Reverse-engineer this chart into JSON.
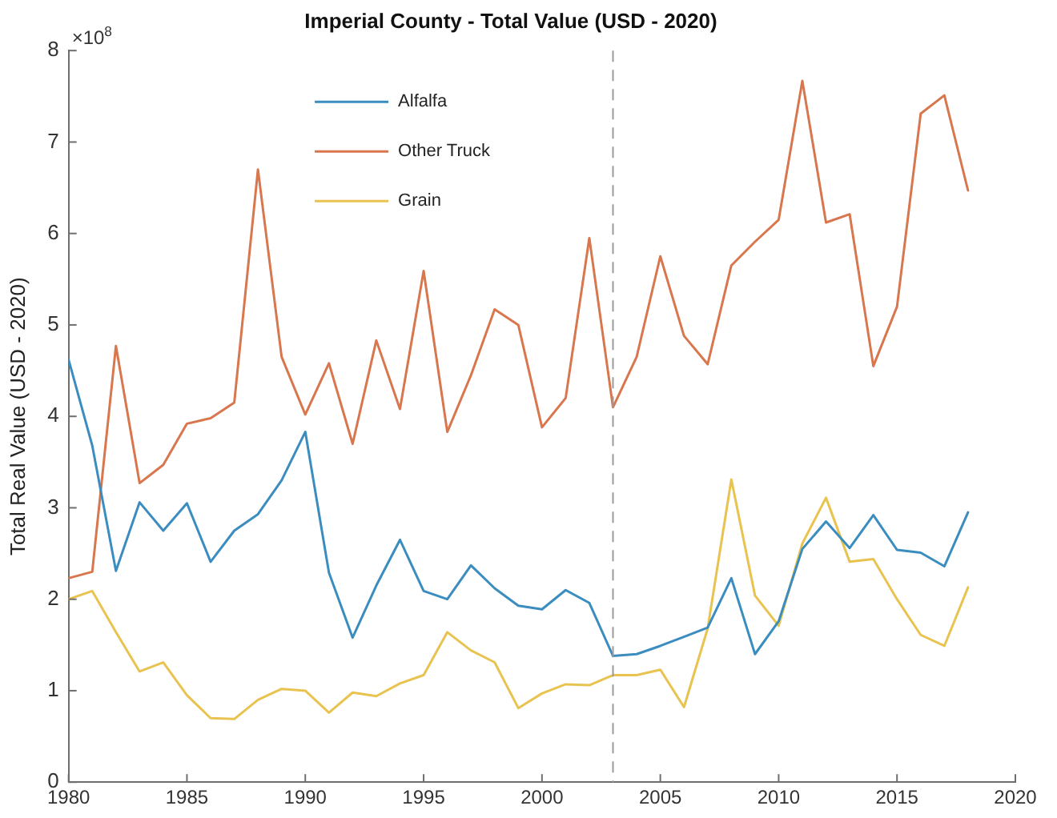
{
  "chart_data": {
    "type": "line",
    "title": "Imperial County - Total Value (USD - 2020)",
    "ylabel": "Total Real Value (USD - 2020)",
    "annotations": [
      "×10$^{8}$"
    ],
    "x": [
      1980,
      1981,
      1982,
      1983,
      1984,
      1985,
      1986,
      1987,
      1988,
      1989,
      1990,
      1991,
      1992,
      1993,
      1994,
      1995,
      1996,
      1997,
      1998,
      1999,
      2000,
      2001,
      2002,
      2003,
      2004,
      2005,
      2006,
      2007,
      2008,
      2009,
      2010,
      2011,
      2012,
      2013,
      2014,
      2015,
      2016,
      2017,
      2018
    ],
    "series": [
      {
        "name": "Alfalfa",
        "color": "#3b8dc0",
        "values": [
          4.62,
          3.68,
          2.31,
          3.06,
          2.75,
          3.05,
          2.41,
          2.75,
          2.93,
          3.3,
          3.83,
          2.29,
          1.58,
          2.15,
          2.65,
          2.09,
          2.0,
          2.37,
          2.12,
          1.93,
          1.89,
          2.1,
          1.96,
          1.38,
          1.4,
          1.49,
          1.59,
          1.69,
          2.23,
          1.4,
          1.76,
          2.55,
          2.85,
          2.56,
          2.92,
          2.54,
          2.51,
          2.36,
          2.95
        ]
      },
      {
        "name": "Other Truck",
        "color": "#d8764e",
        "values": [
          2.23,
          2.3,
          4.77,
          3.27,
          3.47,
          3.92,
          3.98,
          4.15,
          6.7,
          4.65,
          4.02,
          4.58,
          3.7,
          4.83,
          4.08,
          5.59,
          3.83,
          4.45,
          5.17,
          5.0,
          3.88,
          4.2,
          5.95,
          4.1,
          4.65,
          5.75,
          4.88,
          4.57,
          5.65,
          5.91,
          6.15,
          7.67,
          6.12,
          6.21,
          4.55,
          5.2,
          7.31,
          7.51,
          6.47
        ]
      },
      {
        "name": "Grain",
        "color": "#e9c350",
        "values": [
          2.0,
          2.09,
          1.64,
          1.21,
          1.31,
          0.95,
          0.7,
          0.69,
          0.9,
          1.02,
          1.0,
          0.76,
          0.98,
          0.94,
          1.08,
          1.17,
          1.64,
          1.44,
          1.31,
          0.81,
          0.97,
          1.07,
          1.06,
          1.17,
          1.17,
          1.23,
          0.82,
          1.68,
          3.31,
          2.04,
          1.71,
          2.61,
          3.11,
          2.41,
          2.44,
          2.0,
          1.61,
          1.49,
          2.13
        ]
      }
    ],
    "xlim": [
      1980,
      2020
    ],
    "xticks": [
      1980,
      1985,
      1990,
      1995,
      2000,
      2005,
      2010,
      2015,
      2020
    ],
    "ylim": [
      0,
      8
    ],
    "yticks": [
      0,
      1,
      2,
      3,
      4,
      5,
      6,
      7,
      8
    ],
    "ref_lines": [
      {
        "axis": "x",
        "value": 2003,
        "color": "#9a9a9a",
        "line_style": "dashed"
      }
    ],
    "legend": "top left"
  }
}
